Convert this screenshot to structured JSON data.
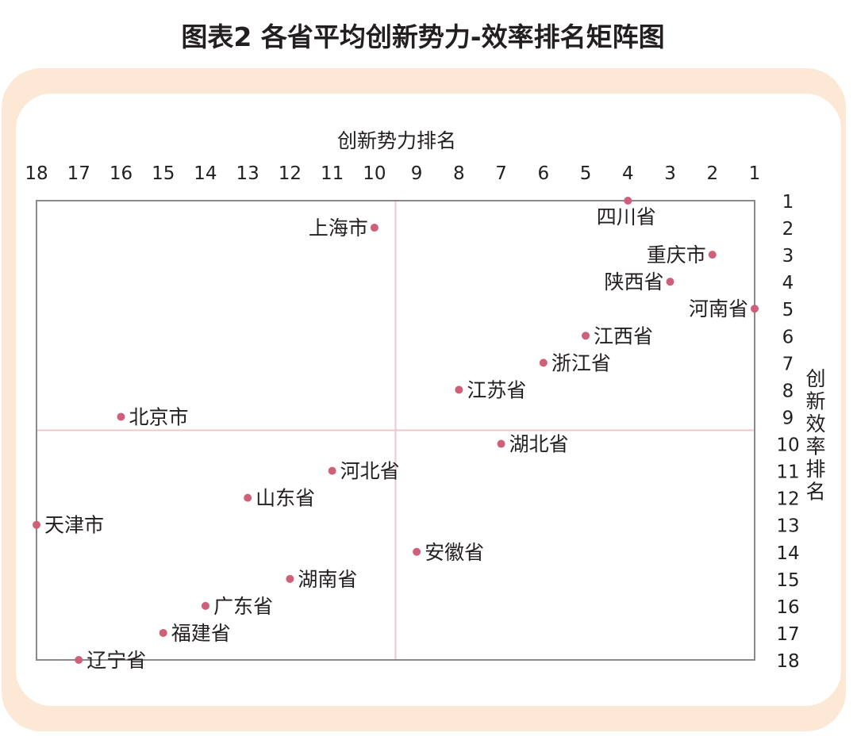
{
  "chart_data": {
    "type": "scatter",
    "title": "图表2  各省平均创新势力-效率排名矩阵图",
    "xlabel": "创新势力排名",
    "ylabel": "创新效率排名",
    "xlim": [
      18,
      1
    ],
    "ylim": [
      1,
      18
    ],
    "x_ticks": [
      18,
      17,
      16,
      15,
      14,
      13,
      12,
      11,
      10,
      9,
      8,
      7,
      6,
      5,
      4,
      3,
      2,
      1
    ],
    "y_ticks": [
      1,
      2,
      3,
      4,
      5,
      6,
      7,
      8,
      9,
      10,
      11,
      12,
      13,
      14,
      15,
      16,
      17,
      18
    ],
    "quadrant_divider": {
      "x": 9.5,
      "y": 9.5
    },
    "points": [
      {
        "name": "四川省",
        "x": 4,
        "y": 1,
        "label_side": "below"
      },
      {
        "name": "上海市",
        "x": 10,
        "y": 2,
        "label_side": "left"
      },
      {
        "name": "重庆市",
        "x": 2,
        "y": 3,
        "label_side": "left"
      },
      {
        "name": "陕西省",
        "x": 3,
        "y": 4,
        "label_side": "left"
      },
      {
        "name": "河南省",
        "x": 1,
        "y": 5,
        "label_side": "left"
      },
      {
        "name": "江西省",
        "x": 5,
        "y": 6,
        "label_side": "right"
      },
      {
        "name": "浙江省",
        "x": 6,
        "y": 7,
        "label_side": "right"
      },
      {
        "name": "江苏省",
        "x": 8,
        "y": 8,
        "label_side": "right"
      },
      {
        "name": "北京市",
        "x": 16,
        "y": 9,
        "label_side": "right"
      },
      {
        "name": "湖北省",
        "x": 7,
        "y": 10,
        "label_side": "right"
      },
      {
        "name": "河北省",
        "x": 11,
        "y": 11,
        "label_side": "right"
      },
      {
        "name": "山东省",
        "x": 13,
        "y": 12,
        "label_side": "right"
      },
      {
        "name": "天津市",
        "x": 18,
        "y": 13,
        "label_side": "right"
      },
      {
        "name": "安徽省",
        "x": 9,
        "y": 14,
        "label_side": "right"
      },
      {
        "name": "湖南省",
        "x": 12,
        "y": 15,
        "label_side": "right"
      },
      {
        "name": "广东省",
        "x": 14,
        "y": 16,
        "label_side": "right"
      },
      {
        "name": "福建省",
        "x": 15,
        "y": 17,
        "label_side": "right"
      },
      {
        "name": "辽宁省",
        "x": 17,
        "y": 18,
        "label_side": "right"
      }
    ],
    "grid": false,
    "colors": {
      "point": "#d0607a",
      "frame": "#8a8a8a",
      "divider": "#f0c6cf",
      "panel": "#fce8d5"
    }
  }
}
